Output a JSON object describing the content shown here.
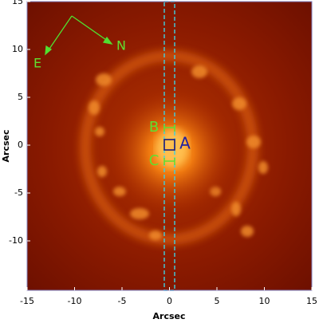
{
  "chart_data": {
    "type": "image",
    "xlabel": "Arcsec",
    "ylabel": "Arcsec",
    "xlim": [
      -15,
      15
    ],
    "ylim": [
      -15,
      15
    ],
    "xticks": [
      -15,
      -10,
      -5,
      0,
      5,
      10,
      15
    ],
    "yticks": [
      -10,
      -5,
      0,
      5,
      10,
      15
    ],
    "annotations": {
      "a": "A",
      "b": "B",
      "c": "C",
      "east": "E",
      "north": "N"
    }
  }
}
